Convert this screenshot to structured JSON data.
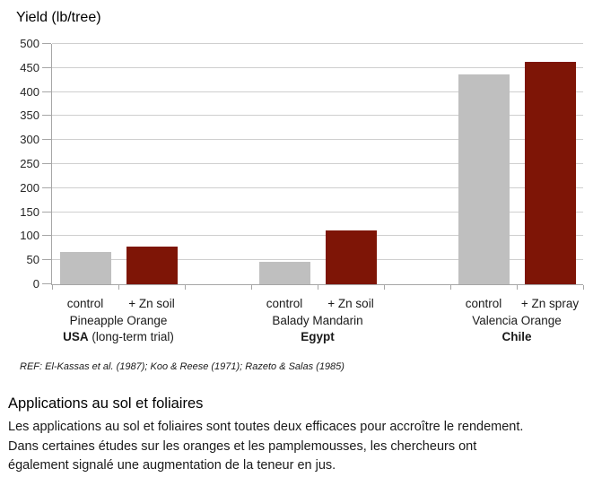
{
  "chart_data": {
    "type": "bar",
    "title": "Yield (lb/tree)",
    "ylabel": "Yield (lb/tree)",
    "ylim": [
      0,
      500
    ],
    "ytick_interval": 50,
    "grid": true,
    "legend": "none",
    "bar_colors": {
      "control": "#bfbfbf",
      "zn_treatment": "#7e1506"
    },
    "axis_color": "#a6a6a6",
    "gridline_color": "#cfcfcf",
    "groups": [
      {
        "cultivar": "Pineapple Orange",
        "country": "USA",
        "country_note": " (long-term trial)",
        "bars": [
          {
            "label": "control",
            "value": 67,
            "series": "control"
          },
          {
            "label": "+ Zn soil",
            "value": 79,
            "series": "zn_treatment"
          }
        ]
      },
      {
        "cultivar": "Balady Mandarin",
        "country": "Egypt",
        "country_note": "",
        "bars": [
          {
            "label": "control",
            "value": 46,
            "series": "control"
          },
          {
            "label": "+ Zn soil",
            "value": 112,
            "series": "zn_treatment"
          }
        ]
      },
      {
        "cultivar": "Valencia Orange",
        "country": "Chile",
        "country_note": "",
        "bars": [
          {
            "label": "control",
            "value": 436,
            "series": "control"
          },
          {
            "label": "+ Zn spray",
            "value": 462,
            "series": "zn_treatment"
          }
        ]
      }
    ],
    "reference": "REF: El-Kassas et al. (1987); Koo & Reese (1971); Razeto  & Salas (1985)"
  },
  "section": {
    "heading": "Applications au sol et foliaires",
    "body": "Les applications au sol et foliaires sont toutes deux efficaces pour accroître le rendement. Dans certaines études sur les oranges et les pamplemousses, les chercheurs ont également signalé une augmentation de la teneur en jus.",
    "body_lines": [
      "Les applications au sol et foliaires sont toutes deux efficaces pour accroître le rendement.",
      "Dans certaines études sur les oranges et les pamplemousses, les chercheurs ont",
      "également signalé une augmentation de la teneur en jus."
    ]
  }
}
